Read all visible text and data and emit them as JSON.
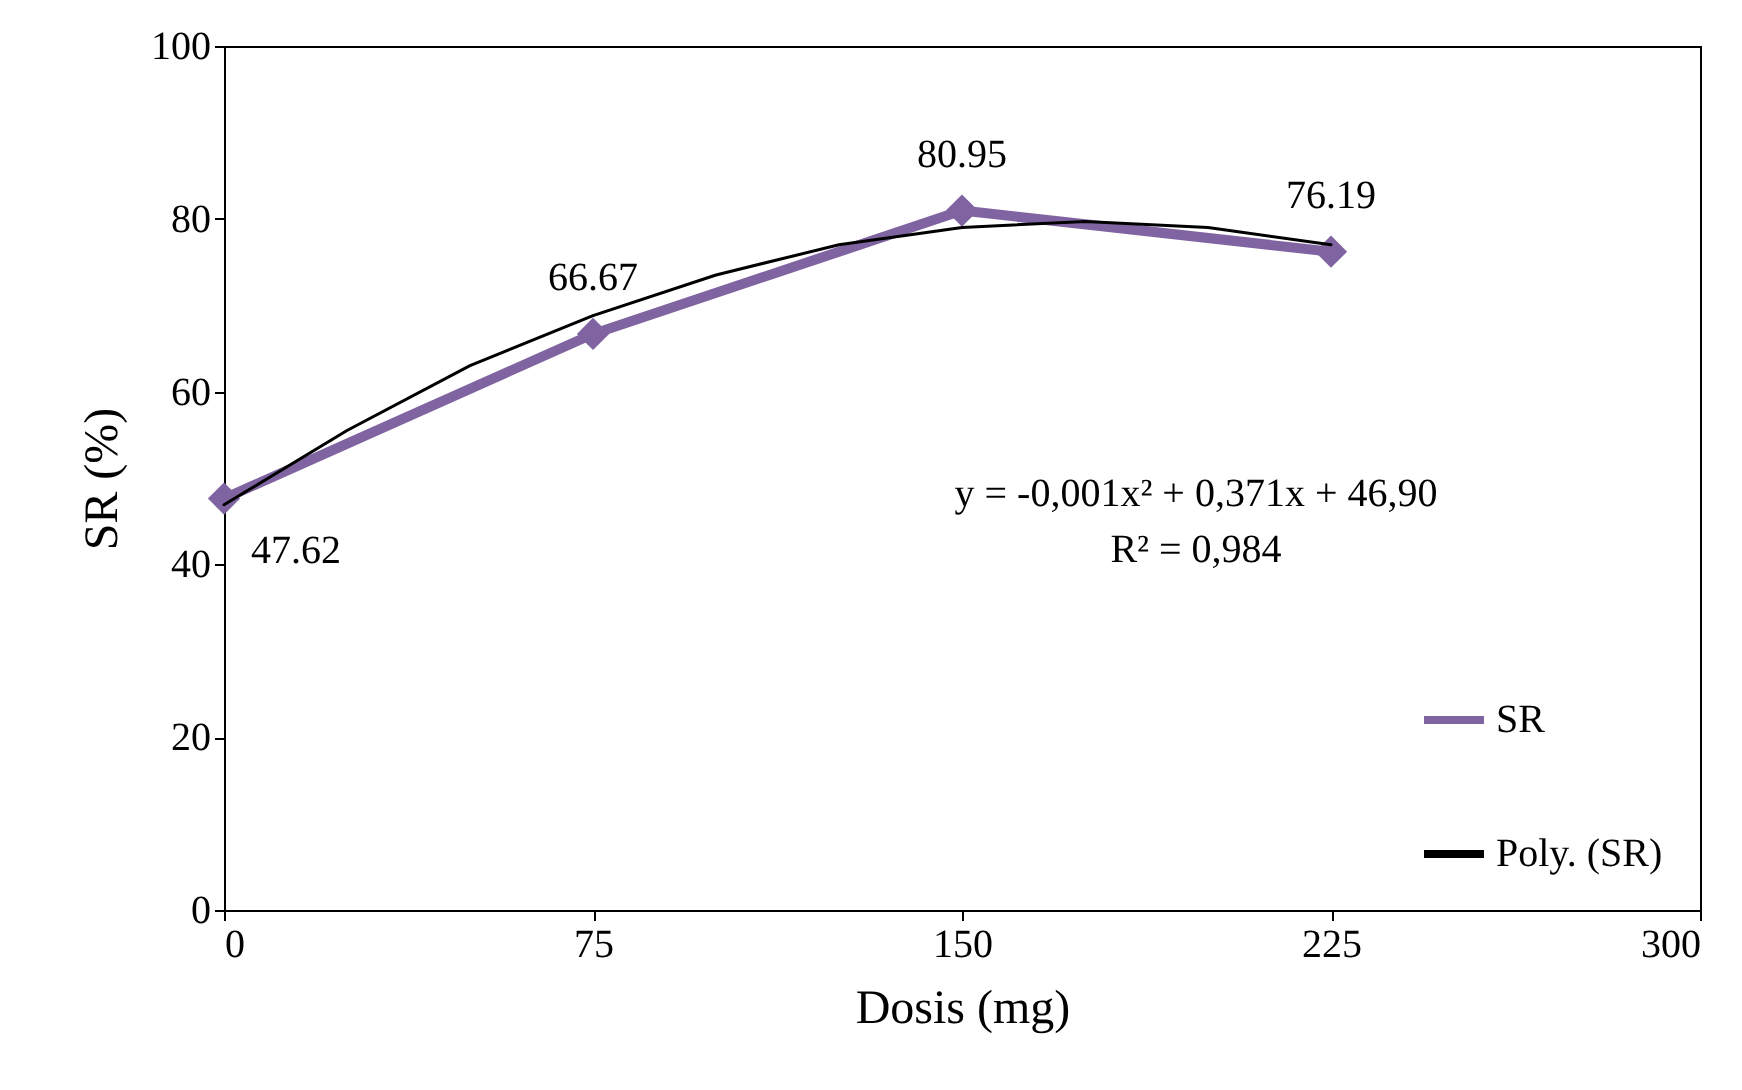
{
  "chart_data": {
    "type": "line",
    "xlabel": "Dosis (mg)",
    "ylabel": "SR (%)",
    "xlim": [
      0,
      300
    ],
    "xticks": [
      0,
      75,
      150,
      225,
      300
    ],
    "ylim": [
      0,
      100
    ],
    "yticks": [
      0,
      20,
      40,
      60,
      80,
      100
    ],
    "series": [
      {
        "name": "SR",
        "color": "#8064a2",
        "x": [
          0,
          75,
          150,
          225
        ],
        "values": [
          47.62,
          66.67,
          80.95,
          76.19
        ],
        "marker": "diamond",
        "data_labels": true
      },
      {
        "name": "Poly. (SR)",
        "color": "#000000",
        "x": [
          0,
          25,
          50,
          75,
          100,
          125,
          150,
          175,
          200,
          225
        ],
        "values": [
          46.9,
          55.5,
          63,
          68.8,
          73.5,
          77,
          79,
          79.7,
          79,
          77
        ],
        "marker": "none"
      }
    ],
    "annotations": [
      "y = -0,001x² + 0,371x + 46,90",
      "R² = 0,984"
    ],
    "legend": "bottom right",
    "grid": false,
    "line_style": "solid"
  }
}
